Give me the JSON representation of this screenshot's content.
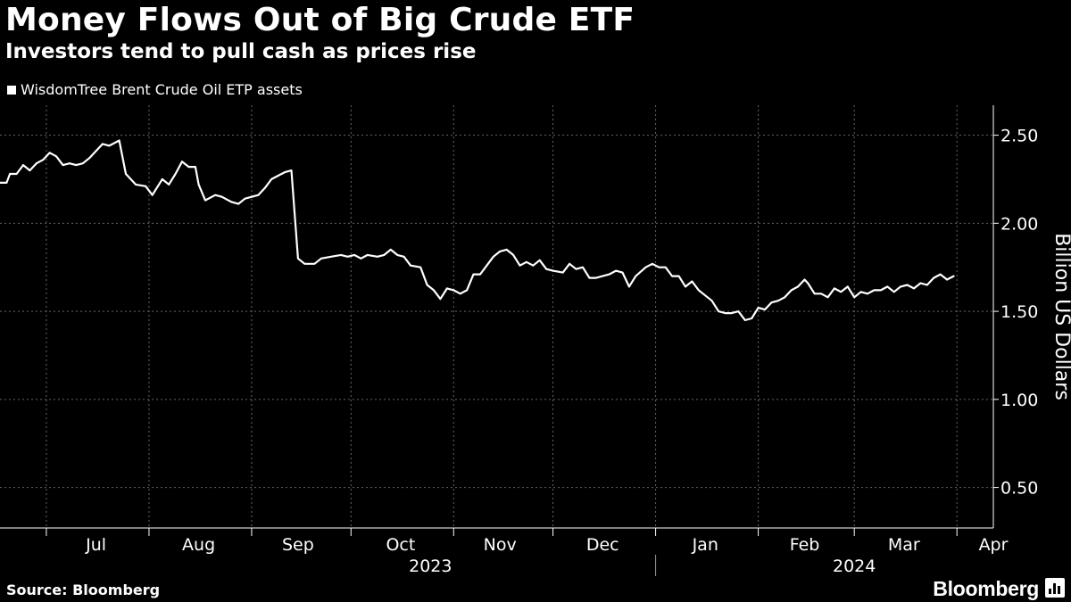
{
  "header": {
    "title": "Money Flows Out of Big Crude ETF",
    "subtitle": "Investors tend to pull cash as prices rise"
  },
  "footer": {
    "source": "Source: Bloomberg",
    "brand": "Bloomberg",
    "brand_icon": "bloomberg-terminal-icon"
  },
  "colors": {
    "background": "#000000",
    "line": "#ffffff",
    "axis": "#ffffff",
    "gridline": "#666666"
  },
  "chart_data": {
    "type": "line",
    "title": "Money Flows Out of Big Crude ETF",
    "subtitle": "Investors tend to pull cash as prices rise",
    "ylabel": "Billion US Dollars",
    "xlabel": "",
    "ylim": [
      0.27,
      2.67
    ],
    "yticks": [
      0.5,
      1.0,
      1.5,
      2.0,
      2.5
    ],
    "ytick_labels": [
      "0.50",
      "1.00",
      "1.50",
      "2.00",
      "2.50"
    ],
    "xlim": [
      "2023-06-17",
      "2024-04-12"
    ],
    "month_boundaries": [
      "2023-07-01",
      "2023-08-01",
      "2023-09-01",
      "2023-10-01",
      "2023-11-01",
      "2023-12-01",
      "2024-01-01",
      "2024-02-01",
      "2024-03-01",
      "2024-04-01"
    ],
    "month_labels": [
      {
        "label": "Jul",
        "mid": "2023-07-16"
      },
      {
        "label": "Aug",
        "mid": "2023-08-16"
      },
      {
        "label": "Sep",
        "mid": "2023-09-15"
      },
      {
        "label": "Oct",
        "mid": "2023-10-16"
      },
      {
        "label": "Nov",
        "mid": "2023-11-15"
      },
      {
        "label": "Dec",
        "mid": "2023-12-16"
      },
      {
        "label": "Jan",
        "mid": "2024-01-16"
      },
      {
        "label": "Feb",
        "mid": "2024-02-15"
      },
      {
        "label": "Mar",
        "mid": "2024-03-16"
      },
      {
        "label": "Apr",
        "mid": "2024-04-12"
      }
    ],
    "year_labels": [
      {
        "label": "2023",
        "mid": "2023-10-25"
      },
      {
        "label": "2024",
        "mid": "2024-03-01"
      }
    ],
    "year_divider": "2024-01-01",
    "grid": true,
    "legend_position": "top-left",
    "series": [
      {
        "name": "WisdomTree Brent Crude Oil ETP assets",
        "color": "#ffffff",
        "points": [
          [
            "2023-06-17",
            2.23
          ],
          [
            "2023-06-19",
            2.23
          ],
          [
            "2023-06-20",
            2.28
          ],
          [
            "2023-06-22",
            2.28
          ],
          [
            "2023-06-24",
            2.33
          ],
          [
            "2023-06-26",
            2.3
          ],
          [
            "2023-06-28",
            2.34
          ],
          [
            "2023-06-30",
            2.36
          ],
          [
            "2023-07-02",
            2.4
          ],
          [
            "2023-07-04",
            2.38
          ],
          [
            "2023-07-06",
            2.33
          ],
          [
            "2023-07-08",
            2.34
          ],
          [
            "2023-07-10",
            2.33
          ],
          [
            "2023-07-12",
            2.34
          ],
          [
            "2023-07-14",
            2.37
          ],
          [
            "2023-07-16",
            2.41
          ],
          [
            "2023-07-18",
            2.45
          ],
          [
            "2023-07-20",
            2.44
          ],
          [
            "2023-07-23",
            2.47
          ],
          [
            "2023-07-25",
            2.28
          ],
          [
            "2023-07-28",
            2.22
          ],
          [
            "2023-07-31",
            2.21
          ],
          [
            "2023-08-02",
            2.16
          ],
          [
            "2023-08-05",
            2.25
          ],
          [
            "2023-08-07",
            2.22
          ],
          [
            "2023-08-09",
            2.28
          ],
          [
            "2023-08-11",
            2.35
          ],
          [
            "2023-08-13",
            2.32
          ],
          [
            "2023-08-15",
            2.32
          ],
          [
            "2023-08-16",
            2.22
          ],
          [
            "2023-08-18",
            2.13
          ],
          [
            "2023-08-21",
            2.16
          ],
          [
            "2023-08-23",
            2.15
          ],
          [
            "2023-08-26",
            2.12
          ],
          [
            "2023-08-28",
            2.11
          ],
          [
            "2023-08-30",
            2.14
          ],
          [
            "2023-09-01",
            2.15
          ],
          [
            "2023-09-03",
            2.16
          ],
          [
            "2023-09-05",
            2.2
          ],
          [
            "2023-09-07",
            2.25
          ],
          [
            "2023-09-09",
            2.27
          ],
          [
            "2023-09-11",
            2.29
          ],
          [
            "2023-09-13",
            2.3
          ],
          [
            "2023-09-15",
            1.8
          ],
          [
            "2023-09-17",
            1.77
          ],
          [
            "2023-09-20",
            1.77
          ],
          [
            "2023-09-22",
            1.8
          ],
          [
            "2023-09-25",
            1.81
          ],
          [
            "2023-09-28",
            1.82
          ],
          [
            "2023-09-30",
            1.81
          ],
          [
            "2023-10-02",
            1.82
          ],
          [
            "2023-10-04",
            1.8
          ],
          [
            "2023-10-06",
            1.82
          ],
          [
            "2023-10-09",
            1.81
          ],
          [
            "2023-10-11",
            1.82
          ],
          [
            "2023-10-13",
            1.85
          ],
          [
            "2023-10-15",
            1.82
          ],
          [
            "2023-10-17",
            1.81
          ],
          [
            "2023-10-19",
            1.76
          ],
          [
            "2023-10-22",
            1.75
          ],
          [
            "2023-10-24",
            1.65
          ],
          [
            "2023-10-26",
            1.62
          ],
          [
            "2023-10-28",
            1.57
          ],
          [
            "2023-10-30",
            1.63
          ],
          [
            "2023-11-01",
            1.62
          ],
          [
            "2023-11-03",
            1.6
          ],
          [
            "2023-11-05",
            1.62
          ],
          [
            "2023-11-07",
            1.71
          ],
          [
            "2023-11-09",
            1.71
          ],
          [
            "2023-11-11",
            1.76
          ],
          [
            "2023-11-13",
            1.81
          ],
          [
            "2023-11-15",
            1.84
          ],
          [
            "2023-11-17",
            1.85
          ],
          [
            "2023-11-19",
            1.82
          ],
          [
            "2023-11-21",
            1.76
          ],
          [
            "2023-11-23",
            1.78
          ],
          [
            "2023-11-25",
            1.76
          ],
          [
            "2023-11-27",
            1.79
          ],
          [
            "2023-11-29",
            1.74
          ],
          [
            "2023-12-01",
            1.73
          ],
          [
            "2023-12-04",
            1.72
          ],
          [
            "2023-12-06",
            1.77
          ],
          [
            "2023-12-08",
            1.74
          ],
          [
            "2023-12-10",
            1.75
          ],
          [
            "2023-12-12",
            1.69
          ],
          [
            "2023-12-14",
            1.69
          ],
          [
            "2023-12-16",
            1.7
          ],
          [
            "2023-12-18",
            1.71
          ],
          [
            "2023-12-20",
            1.73
          ],
          [
            "2023-12-22",
            1.72
          ],
          [
            "2023-12-24",
            1.64
          ],
          [
            "2023-12-26",
            1.7
          ],
          [
            "2023-12-29",
            1.75
          ],
          [
            "2023-12-31",
            1.77
          ],
          [
            "2024-01-02",
            1.75
          ],
          [
            "2024-01-04",
            1.75
          ],
          [
            "2024-01-06",
            1.7
          ],
          [
            "2024-01-08",
            1.7
          ],
          [
            "2024-01-10",
            1.64
          ],
          [
            "2024-01-12",
            1.67
          ],
          [
            "2024-01-14",
            1.62
          ],
          [
            "2024-01-16",
            1.59
          ],
          [
            "2024-01-18",
            1.56
          ],
          [
            "2024-01-20",
            1.5
          ],
          [
            "2024-01-22",
            1.49
          ],
          [
            "2024-01-24",
            1.49
          ],
          [
            "2024-01-26",
            1.5
          ],
          [
            "2024-01-28",
            1.45
          ],
          [
            "2024-01-30",
            1.46
          ],
          [
            "2024-02-01",
            1.52
          ],
          [
            "2024-02-03",
            1.51
          ],
          [
            "2024-02-05",
            1.55
          ],
          [
            "2024-02-07",
            1.56
          ],
          [
            "2024-02-09",
            1.58
          ],
          [
            "2024-02-11",
            1.62
          ],
          [
            "2024-02-13",
            1.64
          ],
          [
            "2024-02-15",
            1.68
          ],
          [
            "2024-02-16",
            1.66
          ],
          [
            "2024-02-18",
            1.6
          ],
          [
            "2024-02-20",
            1.6
          ],
          [
            "2024-02-22",
            1.58
          ],
          [
            "2024-02-24",
            1.63
          ],
          [
            "2024-02-26",
            1.61
          ],
          [
            "2024-02-28",
            1.64
          ],
          [
            "2024-03-01",
            1.58
          ],
          [
            "2024-03-03",
            1.61
          ],
          [
            "2024-03-05",
            1.6
          ],
          [
            "2024-03-07",
            1.62
          ],
          [
            "2024-03-09",
            1.62
          ],
          [
            "2024-03-11",
            1.64
          ],
          [
            "2024-03-13",
            1.61
          ],
          [
            "2024-03-15",
            1.64
          ],
          [
            "2024-03-17",
            1.65
          ],
          [
            "2024-03-19",
            1.63
          ],
          [
            "2024-03-21",
            1.66
          ],
          [
            "2024-03-23",
            1.65
          ],
          [
            "2024-03-25",
            1.69
          ],
          [
            "2024-03-27",
            1.71
          ],
          [
            "2024-03-29",
            1.68
          ],
          [
            "2024-03-31",
            1.7
          ]
        ]
      }
    ]
  }
}
